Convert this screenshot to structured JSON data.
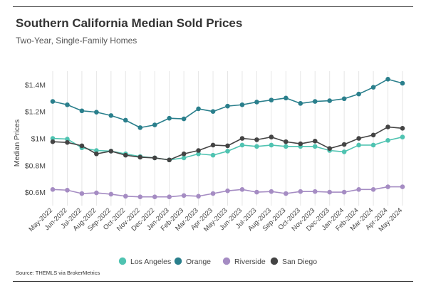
{
  "header": {
    "title": "Southern California Median Sold Prices",
    "subtitle": "Two-Year, Single-Family Homes"
  },
  "footer": {
    "source": "Source:  THEMLS via BrokerMetrics"
  },
  "chart_data": {
    "type": "line",
    "title": "Southern California Median Sold Prices",
    "subtitle": "Two-Year, Single-Family Homes",
    "xlabel": "",
    "ylabel": "Median Prices",
    "ylim": [
      500000,
      1500000
    ],
    "yticks": [
      600000,
      800000,
      1000000,
      1200000,
      1400000
    ],
    "ytick_labels": [
      "$0.6M",
      "$0.8M",
      "$1M",
      "$1.2M",
      "$1.4M"
    ],
    "grid": "vertical",
    "legend_position": "bottom",
    "categories": [
      "May-2022",
      "Jun-2022",
      "Jul-2022",
      "Aug-2022",
      "Sep-2022",
      "Oct-2022",
      "Nov-2022",
      "Dec-2022",
      "Jan-2023",
      "Feb-2023",
      "Mar-2023",
      "Apr-2023",
      "May-2023",
      "Jun-2023",
      "Jul-2023",
      "Aug-2023",
      "Sep-2023",
      "Oct-2023",
      "Nov-2023",
      "Dec-2023",
      "Jan-2024",
      "Feb-2024",
      "Mar-2024",
      "Apr-2024",
      "May-2024"
    ],
    "series": [
      {
        "name": "Los Angeles",
        "color": "#4fc3b1",
        "values": [
          1000000,
          995000,
          930000,
          910000,
          905000,
          885000,
          865000,
          855000,
          840000,
          855000,
          885000,
          875000,
          905000,
          950000,
          940000,
          950000,
          940000,
          940000,
          940000,
          910000,
          900000,
          950000,
          950000,
          985000,
          1010000
        ]
      },
      {
        "name": "Orange",
        "color": "#2a7f8c",
        "values": [
          1275000,
          1250000,
          1205000,
          1195000,
          1170000,
          1135000,
          1080000,
          1100000,
          1150000,
          1145000,
          1220000,
          1200000,
          1240000,
          1250000,
          1270000,
          1285000,
          1300000,
          1260000,
          1275000,
          1280000,
          1295000,
          1330000,
          1380000,
          1440000,
          1410000
        ]
      },
      {
        "name": "Riverside",
        "color": "#a58cc3",
        "values": [
          620000,
          615000,
          590000,
          595000,
          585000,
          570000,
          565000,
          565000,
          565000,
          575000,
          570000,
          590000,
          610000,
          620000,
          600000,
          605000,
          590000,
          605000,
          605000,
          600000,
          600000,
          620000,
          620000,
          640000,
          640000
        ]
      },
      {
        "name": "San Diego",
        "color": "#444444",
        "values": [
          975000,
          970000,
          945000,
          885000,
          905000,
          875000,
          860000,
          855000,
          840000,
          885000,
          910000,
          950000,
          945000,
          1000000,
          990000,
          1010000,
          975000,
          960000,
          980000,
          925000,
          955000,
          1000000,
          1025000,
          1085000,
          1075000
        ]
      }
    ]
  }
}
